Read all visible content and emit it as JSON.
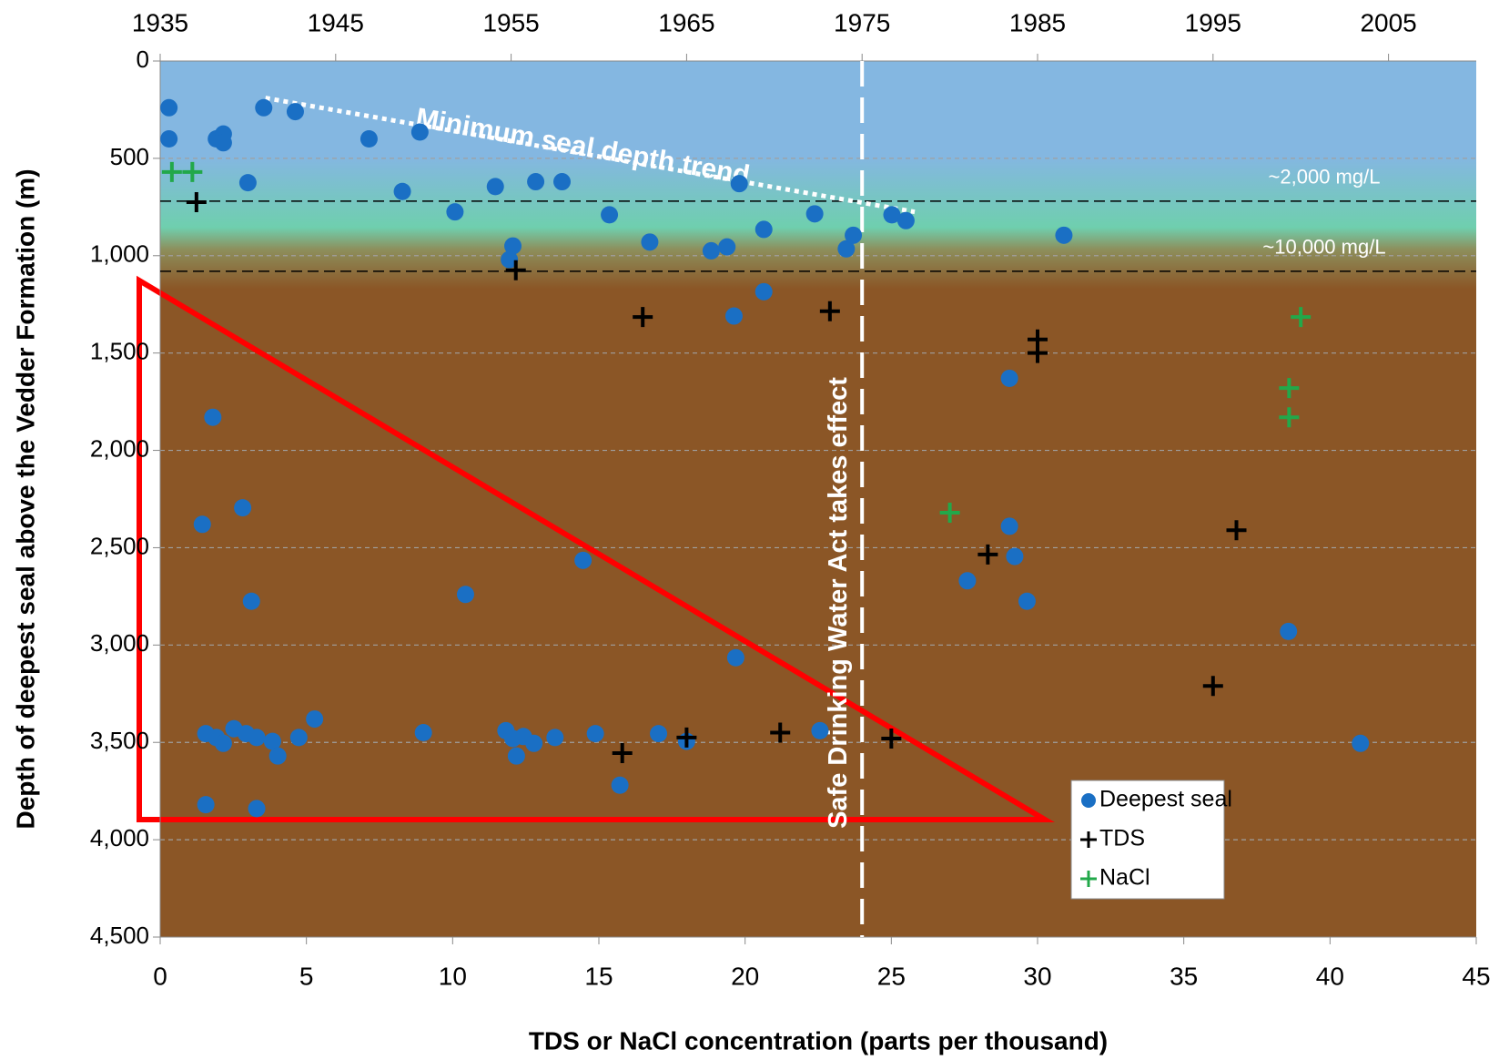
{
  "chart_data": {
    "type": "scatter",
    "ylabel": "Depth of deepest seal above the Vedder Formation (m)",
    "xlabel": "TDS or NaCl concentration (parts per thousand)",
    "xlim": [
      0,
      45
    ],
    "xticks": [
      0,
      5,
      10,
      15,
      20,
      25,
      30,
      35,
      40,
      45
    ],
    "x2lim": [
      1935,
      2010
    ],
    "x2ticks": [
      1935,
      1945,
      1955,
      1965,
      1975,
      1985,
      1995,
      2005
    ],
    "ylim": [
      0,
      4500
    ],
    "y_inverted": true,
    "yticks": [
      0,
      500,
      {
        "value": 1000,
        "label": "1,000"
      },
      {
        "value": 1500,
        "label": "1,500"
      },
      {
        "value": 2000,
        "label": "2,000"
      },
      {
        "value": 2500,
        "label": "2,500"
      },
      {
        "value": 3000,
        "label": "3,000"
      },
      {
        "value": 3500,
        "label": "3,500"
      },
      {
        "value": 4000,
        "label": "4,000"
      },
      {
        "value": 4500,
        "label": "4,500"
      }
    ],
    "grid": true,
    "legend": "lower right",
    "series": [
      {
        "name": "Deepest seal",
        "color": "#1a6fc4",
        "marker": "circle",
        "axis": "x2",
        "x": [
          1935.5,
          1935.5,
          1938.2,
          1938.6,
          1938.6,
          1940.9,
          1942.7,
          1940.0,
          1946.9,
          1949.8,
          1948.8,
          1951.8,
          1954.1,
          1956.4,
          1957.9,
          1960.6,
          1962.9,
          1966.4,
          1967.3,
          1968.0,
          1969.4,
          1972.3,
          1974.1,
          1974.5,
          1976.7,
          1977.5,
          1986.5,
          1955.1,
          1954.9,
          1967.7,
          1969.4,
          1938.0,
          1937.4,
          1939.7,
          1940.2,
          1959.1,
          1952.4,
          1967.8,
          1983.4,
          1983.4,
          1983.7,
          1981.0,
          1984.4,
          1999.3,
          2003.4,
          1937.6,
          1938.2,
          1938.6,
          1939.2,
          1939.9,
          1940.5,
          1941.4,
          1941.7,
          1942.9,
          1943.8,
          1950.0,
          1954.7,
          1955.1,
          1955.3,
          1955.7,
          1956.3,
          1957.5,
          1959.8,
          1963.4,
          1965.0,
          1972.6,
          1961.2,
          1937.6,
          1940.5
        ],
        "values": [
          240,
          400,
          400,
          375,
          420,
          240,
          260,
          625,
          400,
          365,
          670,
          775,
          645,
          620,
          620,
          790,
          930,
          975,
          955,
          630,
          865,
          785,
          965,
          895,
          790,
          820,
          895,
          950,
          1020,
          1310,
          1185,
          1830,
          2380,
          2295,
          2775,
          2565,
          2740,
          3065,
          1630,
          2390,
          2545,
          2670,
          2775,
          2930,
          3505,
          3455,
          3475,
          3505,
          3430,
          3455,
          3475,
          3495,
          3570,
          3475,
          3380,
          3450,
          3440,
          3480,
          3570,
          3470,
          3505,
          3475,
          3455,
          3455,
          3495,
          3440,
          3720,
          3820,
          3840
        ]
      },
      {
        "name": "TDS",
        "color": "#000000",
        "marker": "plus",
        "x": [
          1.24,
          12.16,
          16.5,
          22.9,
          30.0,
          30.0,
          28.3,
          36.8,
          36.0,
          15.8,
          18.0,
          21.2,
          25.0
        ],
        "values": [
          725,
          1075,
          1315,
          1285,
          1430,
          1500,
          2535,
          2410,
          3210,
          3555,
          3475,
          3450,
          3480
        ]
      },
      {
        "name": "NaCl",
        "color": "#22a84a",
        "marker": "plus",
        "x": [
          0.4,
          1.1,
          27.0,
          39.0,
          38.6,
          38.6
        ],
        "values": [
          570,
          570,
          2320,
          1315,
          1680,
          1830
        ]
      }
    ],
    "hlines": [
      {
        "value": 720,
        "label": "~2,000 mg/L"
      },
      {
        "value": 1080,
        "label": "~10,000 mg/L"
      }
    ],
    "vline": {
      "value": 24,
      "label": "Safe Drinking Water Act takes effect"
    },
    "trend": {
      "label": "Minimum seal depth trend",
      "x": [
        1941,
        1978
      ],
      "values": [
        190,
        775
      ]
    }
  }
}
